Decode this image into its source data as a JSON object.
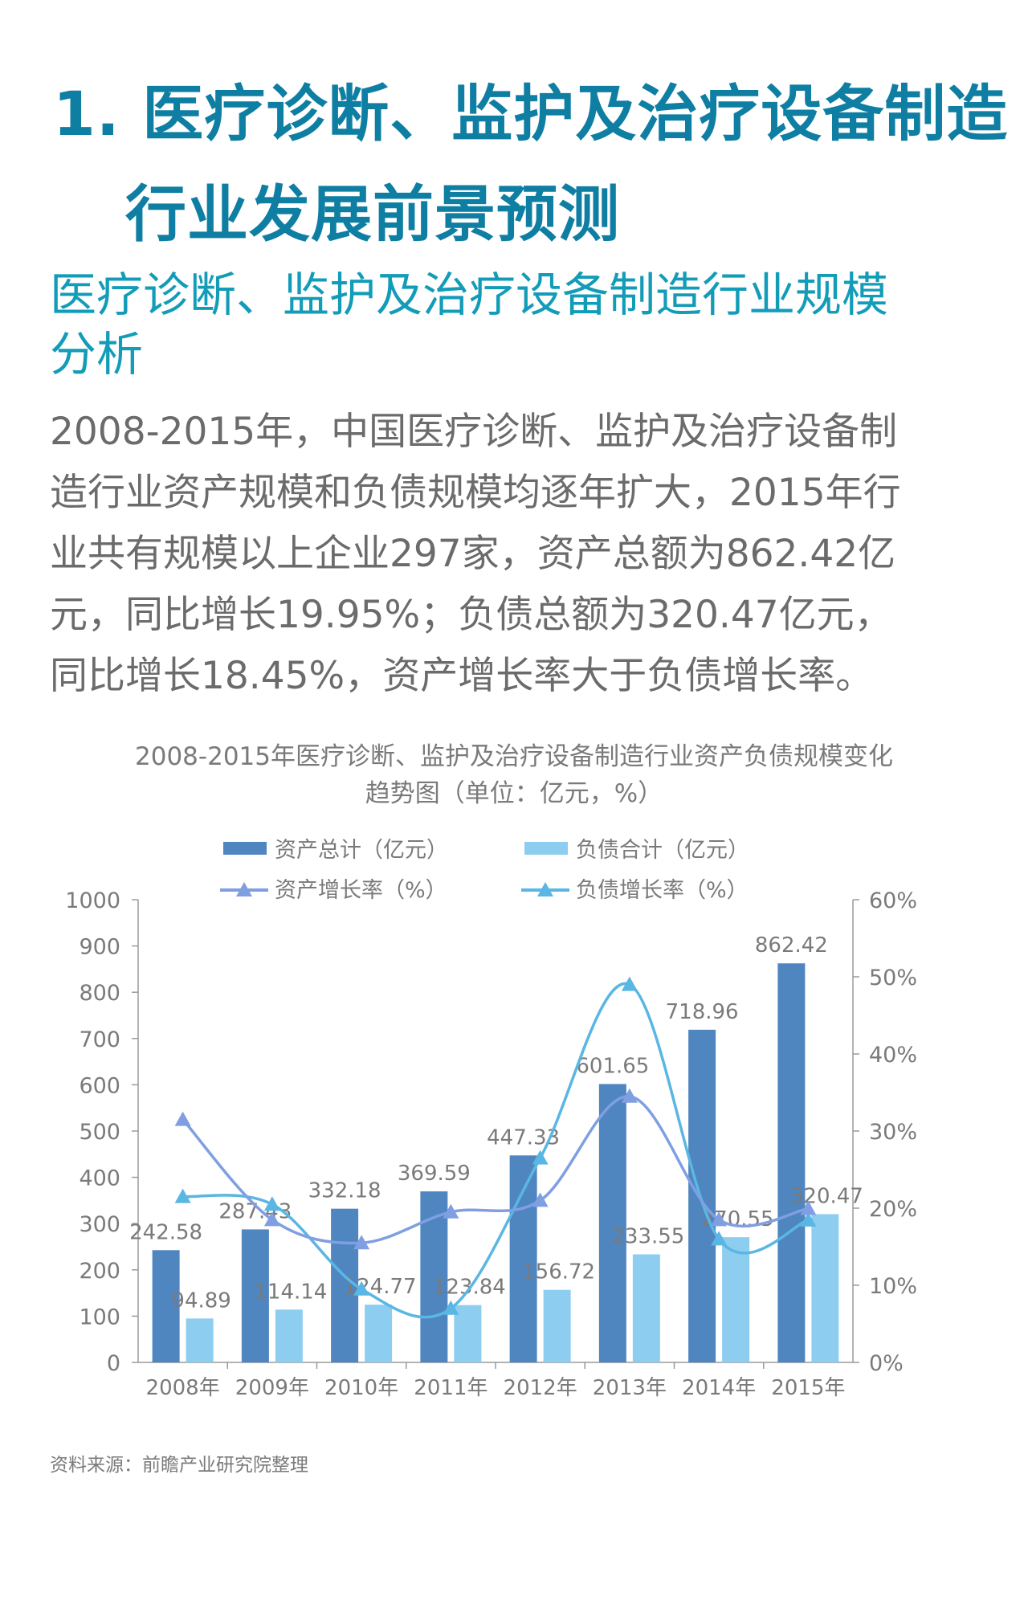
{
  "heading": {
    "line1": "1. 医疗诊断、监护及治疗设备制造",
    "line2": "行业发展前景预测"
  },
  "subheading": {
    "line1": "医疗诊断、监护及治疗设备制造行业规模",
    "line2": "分析"
  },
  "paragraph": [
    "2008-2015年，中国医疗诊断、监护及治疗设备制",
    "造行业资产规模和负债规模均逐年扩大，2015年行",
    "业共有规模以上企业297家，资产总额为862.42亿",
    "元，同比增长19.95%；负债总额为320.47亿元，",
    "同比增长18.45%，资产增长率大于负债增长率。"
  ],
  "chart_title": {
    "line1": "2008-2015年医疗诊断、监护及治疗设备制造行业资产负债规模变化",
    "line2": "趋势图（单位：亿元，%）"
  },
  "source": "资料来源：前瞻产业研究院整理",
  "chart_data": {
    "type": "bar",
    "title": "2008-2015年医疗诊断、监护及治疗设备制造行业资产负债规模变化趋势图（单位：亿元，%）",
    "categories": [
      "2008年",
      "2009年",
      "2010年",
      "2011年",
      "2012年",
      "2013年",
      "2014年",
      "2015年"
    ],
    "left_axis": {
      "ylim": [
        0,
        1000
      ],
      "ticks": [
        "0",
        "100",
        "200",
        "300",
        "400",
        "500",
        "600",
        "700",
        "800",
        "900",
        "1000"
      ]
    },
    "right_axis": {
      "ylim": [
        0,
        60
      ],
      "ticks": [
        "0%",
        "10%",
        "20%",
        "30%",
        "40%",
        "50%",
        "60%"
      ]
    },
    "legend_placement": "top",
    "series": [
      {
        "name": "资产总计（亿元）",
        "type": "bar",
        "axis": "left",
        "color": "#4f86c0",
        "values": [
          242.58,
          287.43,
          332.18,
          369.59,
          447.33,
          601.65,
          718.96,
          862.42
        ],
        "labels": [
          "242.58",
          "287.43",
          "332.18",
          "369.59",
          "447.33",
          "601.65",
          "718.96",
          "862.42"
        ]
      },
      {
        "name": "负债合计（亿元）",
        "type": "bar",
        "axis": "left",
        "color": "#8dcdf0",
        "values": [
          94.89,
          114.14,
          124.77,
          123.84,
          156.72,
          233.55,
          270.55,
          320.47
        ],
        "labels": [
          "94.89",
          "114.14",
          "124.77",
          "123.84",
          "156.72",
          "233.55",
          "270.55",
          "320.47"
        ]
      },
      {
        "name": "资产增长率（%）",
        "type": "line",
        "axis": "right",
        "color": "#7f9fe2",
        "values": [
          31.5,
          18.5,
          15.5,
          19.5,
          21.0,
          34.5,
          18.5,
          19.95
        ]
      },
      {
        "name": "负债增长率（%）",
        "type": "line",
        "axis": "right",
        "color": "#5ab6e2",
        "values": [
          21.5,
          20.5,
          9.5,
          7.0,
          26.5,
          49.0,
          16.0,
          18.45
        ]
      }
    ]
  }
}
